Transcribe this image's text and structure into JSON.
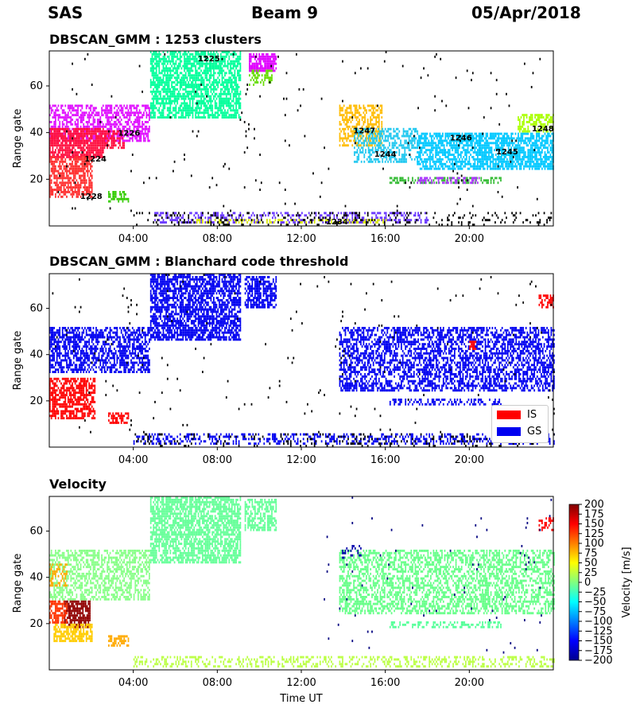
{
  "header": {
    "radar": "SAS",
    "beam": "Beam 9",
    "date": "05/Apr/2018"
  },
  "colors": {
    "IS": "#ff0000",
    "GS": "#0000f0",
    "jet": [
      "#00008f",
      "#0000ff",
      "#0080ff",
      "#00ffff",
      "#80ff80",
      "#ffff00",
      "#ff8000",
      "#ff0000",
      "#800000"
    ]
  },
  "legend": {
    "is_label": "IS",
    "gs_label": "GS"
  },
  "colorbar": {
    "label": "Velocity [m/s]",
    "min": -200,
    "max": 200,
    "ticks": [
      "200",
      "175",
      "150",
      "125",
      "100",
      "75",
      "50",
      "25",
      "0",
      "−25",
      "−50",
      "−75",
      "−100",
      "−125",
      "−150",
      "−175",
      "−200"
    ]
  },
  "chart_data": [
    {
      "type": "heatmap",
      "title": "DBSCAN_GMM : 1253 clusters",
      "ylabel": "Range gate",
      "xlabel": "",
      "xlim": [
        0,
        24
      ],
      "ylim": [
        0,
        75
      ],
      "xticks": [
        "04:00",
        "08:00",
        "12:00",
        "16:00",
        "20:00"
      ],
      "yticks": [
        "20",
        "40",
        "60"
      ],
      "annotations": [
        {
          "text": "1225",
          "x": 7.6,
          "y": 72
        },
        {
          "text": "1226",
          "x": 3.8,
          "y": 40
        },
        {
          "text": "1224",
          "x": 2.2,
          "y": 29
        },
        {
          "text": "1228",
          "x": 2.0,
          "y": 13
        },
        {
          "text": "1247",
          "x": 15.0,
          "y": 41
        },
        {
          "text": "1244",
          "x": 16.0,
          "y": 31
        },
        {
          "text": "1246",
          "x": 19.6,
          "y": 38
        },
        {
          "text": "1245",
          "x": 21.8,
          "y": 32
        },
        {
          "text": "1248",
          "x": 23.5,
          "y": 42
        },
        {
          "text": "1234",
          "x": 13.7,
          "y": 2
        }
      ],
      "regions": [
        {
          "color": "#00ff9a",
          "t0": 4.8,
          "t1": 9.1,
          "g0": 46,
          "g1": 75,
          "d": 0.7
        },
        {
          "color": "#e000ff",
          "t0": 9.5,
          "t1": 10.8,
          "g0": 66,
          "g1": 74,
          "d": 0.8
        },
        {
          "color": "#66dd00",
          "t0": 9.5,
          "t1": 10.6,
          "g0": 60,
          "g1": 67,
          "d": 0.5
        },
        {
          "color": "#e010ff",
          "t0": 0.0,
          "t1": 4.8,
          "g0": 36,
          "g1": 52,
          "d": 0.6
        },
        {
          "color": "#ff1040",
          "t0": 0.0,
          "t1": 2.6,
          "g0": 29,
          "g1": 42,
          "d": 0.85
        },
        {
          "color": "#ff1040",
          "t0": 2.6,
          "t1": 3.6,
          "g0": 33,
          "g1": 41,
          "d": 0.6
        },
        {
          "color": "#ff3030",
          "t0": 0.0,
          "t1": 2.0,
          "g0": 12,
          "g1": 30,
          "d": 0.65
        },
        {
          "color": "#33cc00",
          "t0": 2.8,
          "t1": 3.8,
          "g0": 10,
          "g1": 15,
          "d": 0.6
        },
        {
          "color": "#ffbb00",
          "t0": 13.8,
          "t1": 15.8,
          "g0": 34,
          "g1": 52,
          "d": 0.55
        },
        {
          "color": "#22c8f0",
          "t0": 14.5,
          "t1": 17.5,
          "g0": 27,
          "g1": 42,
          "d": 0.5
        },
        {
          "color": "#00c8ff",
          "t0": 17.5,
          "t1": 24.0,
          "g0": 24,
          "g1": 40,
          "d": 0.7
        },
        {
          "color": "#aaff00",
          "t0": 22.3,
          "t1": 24.0,
          "g0": 40,
          "g1": 48,
          "d": 0.6
        },
        {
          "color": "#6633ff",
          "t0": 5.0,
          "t1": 18.0,
          "g0": 1,
          "g1": 6,
          "d": 0.35
        },
        {
          "color": "#ddee00",
          "t0": 7.0,
          "t1": 16.0,
          "g0": 1,
          "g1": 3,
          "d": 0.35
        },
        {
          "color": "#33bb33",
          "t0": 16.2,
          "t1": 21.5,
          "g0": 18,
          "g1": 21,
          "d": 0.5
        },
        {
          "color": "#aa33ff",
          "t0": 17.5,
          "t1": 20.5,
          "g0": 18,
          "g1": 21,
          "d": 0.4
        },
        {
          "color": "#000000",
          "t0": 4.0,
          "t1": 24.0,
          "g0": 0,
          "g1": 6,
          "d": 0.15
        },
        {
          "color": "#000000",
          "t0": 0.0,
          "t1": 24.0,
          "g0": 6,
          "g1": 75,
          "d": 0.008
        }
      ]
    },
    {
      "type": "heatmap",
      "title": "DBSCAN_GMM : Blanchard code threshold",
      "ylabel": "Range gate",
      "xlabel": "",
      "xlim": [
        0,
        24
      ],
      "ylim": [
        0,
        75
      ],
      "xticks": [
        "04:00",
        "08:00",
        "12:00",
        "16:00",
        "20:00"
      ],
      "yticks": [
        "20",
        "40",
        "60"
      ],
      "series": [
        {
          "name": "IS"
        },
        {
          "name": "GS"
        }
      ],
      "regions": [
        {
          "color": "#0000f0",
          "t0": 4.8,
          "t1": 9.1,
          "g0": 46,
          "g1": 75,
          "d": 0.7
        },
        {
          "color": "#0000f0",
          "t0": 9.3,
          "t1": 10.8,
          "g0": 60,
          "g1": 74,
          "d": 0.65
        },
        {
          "color": "#0000f0",
          "t0": 0.0,
          "t1": 4.8,
          "g0": 32,
          "g1": 52,
          "d": 0.6
        },
        {
          "color": "#0000f0",
          "t0": 13.8,
          "t1": 24.0,
          "g0": 24,
          "g1": 52,
          "d": 0.55
        },
        {
          "color": "#0000f0",
          "t0": 16.2,
          "t1": 21.5,
          "g0": 18,
          "g1": 21,
          "d": 0.45
        },
        {
          "color": "#0000f0",
          "t0": 4.0,
          "t1": 24.0,
          "g0": 1,
          "g1": 6,
          "d": 0.35
        },
        {
          "color": "#ff0000",
          "t0": 0.0,
          "t1": 2.2,
          "g0": 12,
          "g1": 30,
          "d": 0.65
        },
        {
          "color": "#ff0000",
          "t0": 2.8,
          "t1": 3.8,
          "g0": 10,
          "g1": 15,
          "d": 0.6
        },
        {
          "color": "#ff0000",
          "t0": 23.3,
          "t1": 24.0,
          "g0": 60,
          "g1": 66,
          "d": 0.6
        },
        {
          "color": "#ff0000",
          "t0": 20.0,
          "t1": 20.3,
          "g0": 42,
          "g1": 46,
          "d": 0.6
        },
        {
          "color": "#000000",
          "t0": 4.0,
          "t1": 24.0,
          "g0": 0,
          "g1": 6,
          "d": 0.12
        },
        {
          "color": "#000000",
          "t0": 0.0,
          "t1": 24.0,
          "g0": 6,
          "g1": 75,
          "d": 0.008
        }
      ]
    },
    {
      "type": "heatmap",
      "title": "Velocity",
      "ylabel": "Range gate",
      "xlabel": "Time UT",
      "xlim": [
        0,
        24
      ],
      "ylim": [
        0,
        75
      ],
      "xticks": [
        "04:00",
        "08:00",
        "12:00",
        "16:00",
        "20:00"
      ],
      "yticks": [
        "20",
        "40",
        "60"
      ],
      "regions": [
        {
          "color": "#66ff99",
          "t0": 4.8,
          "t1": 9.1,
          "g0": 46,
          "g1": 75,
          "d": 0.7
        },
        {
          "color": "#66ff99",
          "t0": 9.3,
          "t1": 10.8,
          "g0": 60,
          "g1": 74,
          "d": 0.6
        },
        {
          "color": "#88ff88",
          "t0": 0.0,
          "t1": 4.8,
          "g0": 30,
          "g1": 52,
          "d": 0.55
        },
        {
          "color": "#66ff88",
          "t0": 13.8,
          "t1": 24.0,
          "g0": 24,
          "g1": 52,
          "d": 0.5
        },
        {
          "color": "#55ff99",
          "t0": 16.2,
          "t1": 21.5,
          "g0": 18,
          "g1": 21,
          "d": 0.45
        },
        {
          "color": "#900000",
          "t0": 0.7,
          "t1": 1.9,
          "g0": 18,
          "g1": 30,
          "d": 0.8
        },
        {
          "color": "#ffcc00",
          "t0": 0.2,
          "t1": 2.0,
          "g0": 12,
          "g1": 20,
          "d": 0.7
        },
        {
          "color": "#ff3300",
          "t0": 0.0,
          "t1": 0.8,
          "g0": 20,
          "g1": 30,
          "d": 0.65
        },
        {
          "color": "#ffaa00",
          "t0": 2.8,
          "t1": 3.8,
          "g0": 10,
          "g1": 15,
          "d": 0.6
        },
        {
          "color": "#ffaa00",
          "t0": 0.0,
          "t1": 0.8,
          "g0": 36,
          "g1": 46,
          "d": 0.5
        },
        {
          "color": "#bbff44",
          "t0": 4.0,
          "t1": 24.0,
          "g0": 1,
          "g1": 6,
          "d": 0.35
        },
        {
          "color": "#ff0000",
          "t0": 23.3,
          "t1": 24.0,
          "g0": 60,
          "g1": 66,
          "d": 0.5
        },
        {
          "color": "#0000aa",
          "t0": 13.8,
          "t1": 14.8,
          "g0": 48,
          "g1": 56,
          "d": 0.15
        },
        {
          "color": "#000080",
          "t0": 13.0,
          "t1": 24.0,
          "g0": 6,
          "g1": 75,
          "d": 0.006
        }
      ]
    }
  ]
}
